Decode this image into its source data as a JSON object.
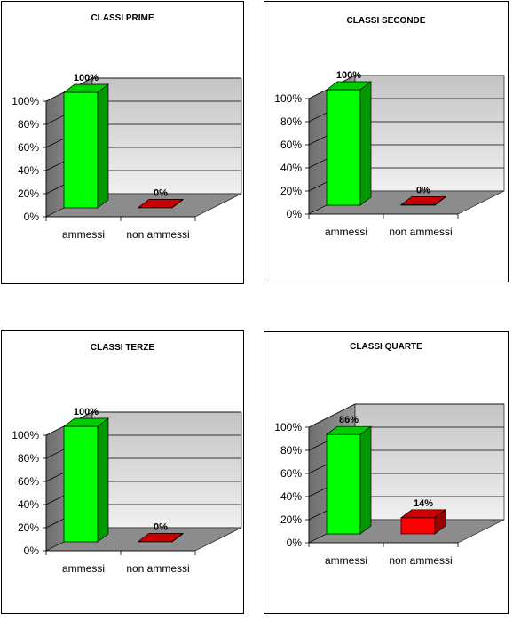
{
  "chart_data": [
    {
      "type": "bar",
      "title": "CLASSI PRIME",
      "categories": [
        "ammessi",
        "non ammessi"
      ],
      "values": [
        100,
        0
      ],
      "value_labels": [
        "100%",
        "0%"
      ],
      "yticks": [
        "0%",
        "20%",
        "40%",
        "60%",
        "80%",
        "100%"
      ],
      "ylim": [
        0,
        100
      ],
      "colors": [
        "#00ff00",
        "#ff0000"
      ],
      "grid": true,
      "legend": "none"
    },
    {
      "type": "bar",
      "title": "CLASSI SECONDE",
      "categories": [
        "ammessi",
        "non ammessi"
      ],
      "values": [
        100,
        0
      ],
      "value_labels": [
        "100%",
        "0%"
      ],
      "yticks": [
        "0%",
        "20%",
        "40%",
        "60%",
        "80%",
        "100%"
      ],
      "ylim": [
        0,
        100
      ],
      "colors": [
        "#00ff00",
        "#ff0000"
      ],
      "grid": true,
      "legend": "none"
    },
    {
      "type": "bar",
      "title": "CLASSI TERZE",
      "categories": [
        "ammessi",
        "non ammessi"
      ],
      "values": [
        100,
        0
      ],
      "value_labels": [
        "100%",
        "0%"
      ],
      "yticks": [
        "0%",
        "20%",
        "40%",
        "60%",
        "80%",
        "100%"
      ],
      "ylim": [
        0,
        100
      ],
      "colors": [
        "#00ff00",
        "#ff0000"
      ],
      "grid": true,
      "legend": "none"
    },
    {
      "type": "bar",
      "title": "CLASSI QUARTE",
      "categories": [
        "ammessi",
        "non ammessi"
      ],
      "values": [
        86,
        14
      ],
      "value_labels": [
        "86%",
        "14%"
      ],
      "yticks": [
        "0%",
        "20%",
        "40%",
        "60%",
        "80%",
        "100%"
      ],
      "ylim": [
        0,
        100
      ],
      "colors": [
        "#00ff00",
        "#ff0000"
      ],
      "grid": true,
      "legend": "none"
    }
  ]
}
